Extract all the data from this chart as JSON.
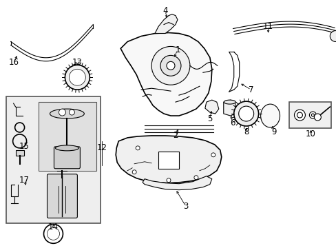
{
  "bg_color": "#ffffff",
  "fig_width": 4.89,
  "fig_height": 3.6,
  "dpi": 100,
  "label_font_size": 8.5,
  "label_color": "#000000",
  "line_color": "#000000"
}
